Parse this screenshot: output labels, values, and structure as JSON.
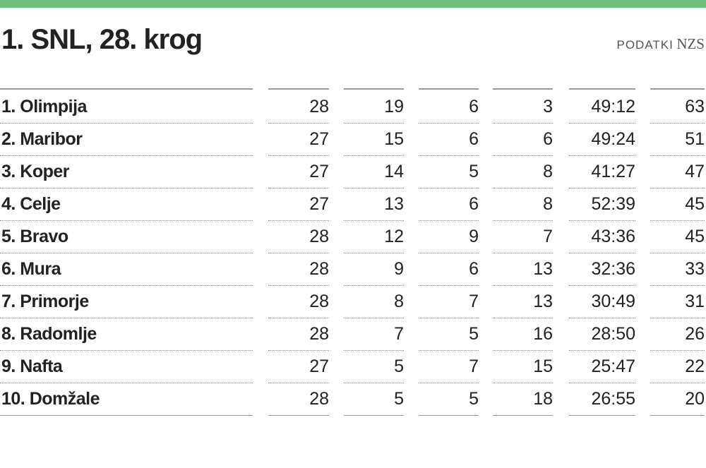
{
  "header": {
    "title": "1. SNL, 28. krog",
    "source_label": "PODATKI",
    "source_name": "NZS"
  },
  "table": {
    "rows": [
      [
        "1. Olimpija",
        28,
        19,
        6,
        3,
        "49:12",
        63
      ],
      [
        "2. Maribor",
        27,
        15,
        6,
        6,
        "49:24",
        51
      ],
      [
        "3. Koper",
        27,
        14,
        5,
        8,
        "41:27",
        47
      ],
      [
        "4. Celje",
        27,
        13,
        6,
        8,
        "52:39",
        45
      ],
      [
        "5. Bravo",
        28,
        12,
        9,
        7,
        "43:36",
        45
      ],
      [
        "6. Mura",
        28,
        9,
        6,
        13,
        "32:36",
        33
      ],
      [
        "7. Primorje",
        28,
        8,
        7,
        13,
        "30:49",
        31
      ],
      [
        "8. Radomlje",
        28,
        7,
        5,
        16,
        "28:50",
        26
      ],
      [
        "9. Nafta",
        27,
        5,
        7,
        15,
        "25:47",
        22
      ],
      [
        "10. Domžale",
        28,
        5,
        5,
        18,
        "26:55",
        20
      ]
    ]
  }
}
